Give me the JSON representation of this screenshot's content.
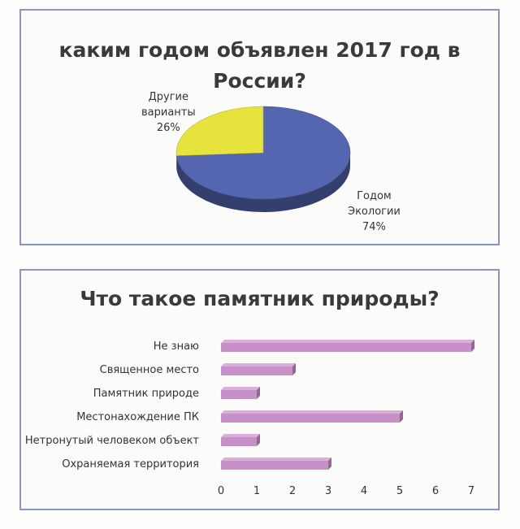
{
  "chart_data": [
    {
      "type": "pie",
      "title": "каким годом объявлен 2017 год в России?",
      "slices": [
        {
          "label_lines": [
            "Годом",
            "Экологии"
          ],
          "value": 74,
          "value_label": "74%",
          "color": "#5566b0"
        },
        {
          "label_lines": [
            "Другие",
            "варианты"
          ],
          "value": 26,
          "value_label": "26%",
          "color": "#e6e43c"
        }
      ]
    },
    {
      "type": "bar",
      "orientation": "horizontal",
      "title": "Что такое памятник природы?",
      "categories": [
        "Не знаю",
        "Священное место",
        "Памятник природе",
        "Местонахождение ПК",
        "Нетронутый человеком объект",
        "Охраняемая территория"
      ],
      "values": [
        7,
        2,
        1,
        5,
        1,
        3
      ],
      "xlim": [
        0,
        7
      ],
      "ticks": [
        "0",
        "1",
        "2",
        "3",
        "4",
        "5",
        "6",
        "7"
      ],
      "bar_color": "#c890c8",
      "grid": false,
      "legend": "none"
    }
  ]
}
